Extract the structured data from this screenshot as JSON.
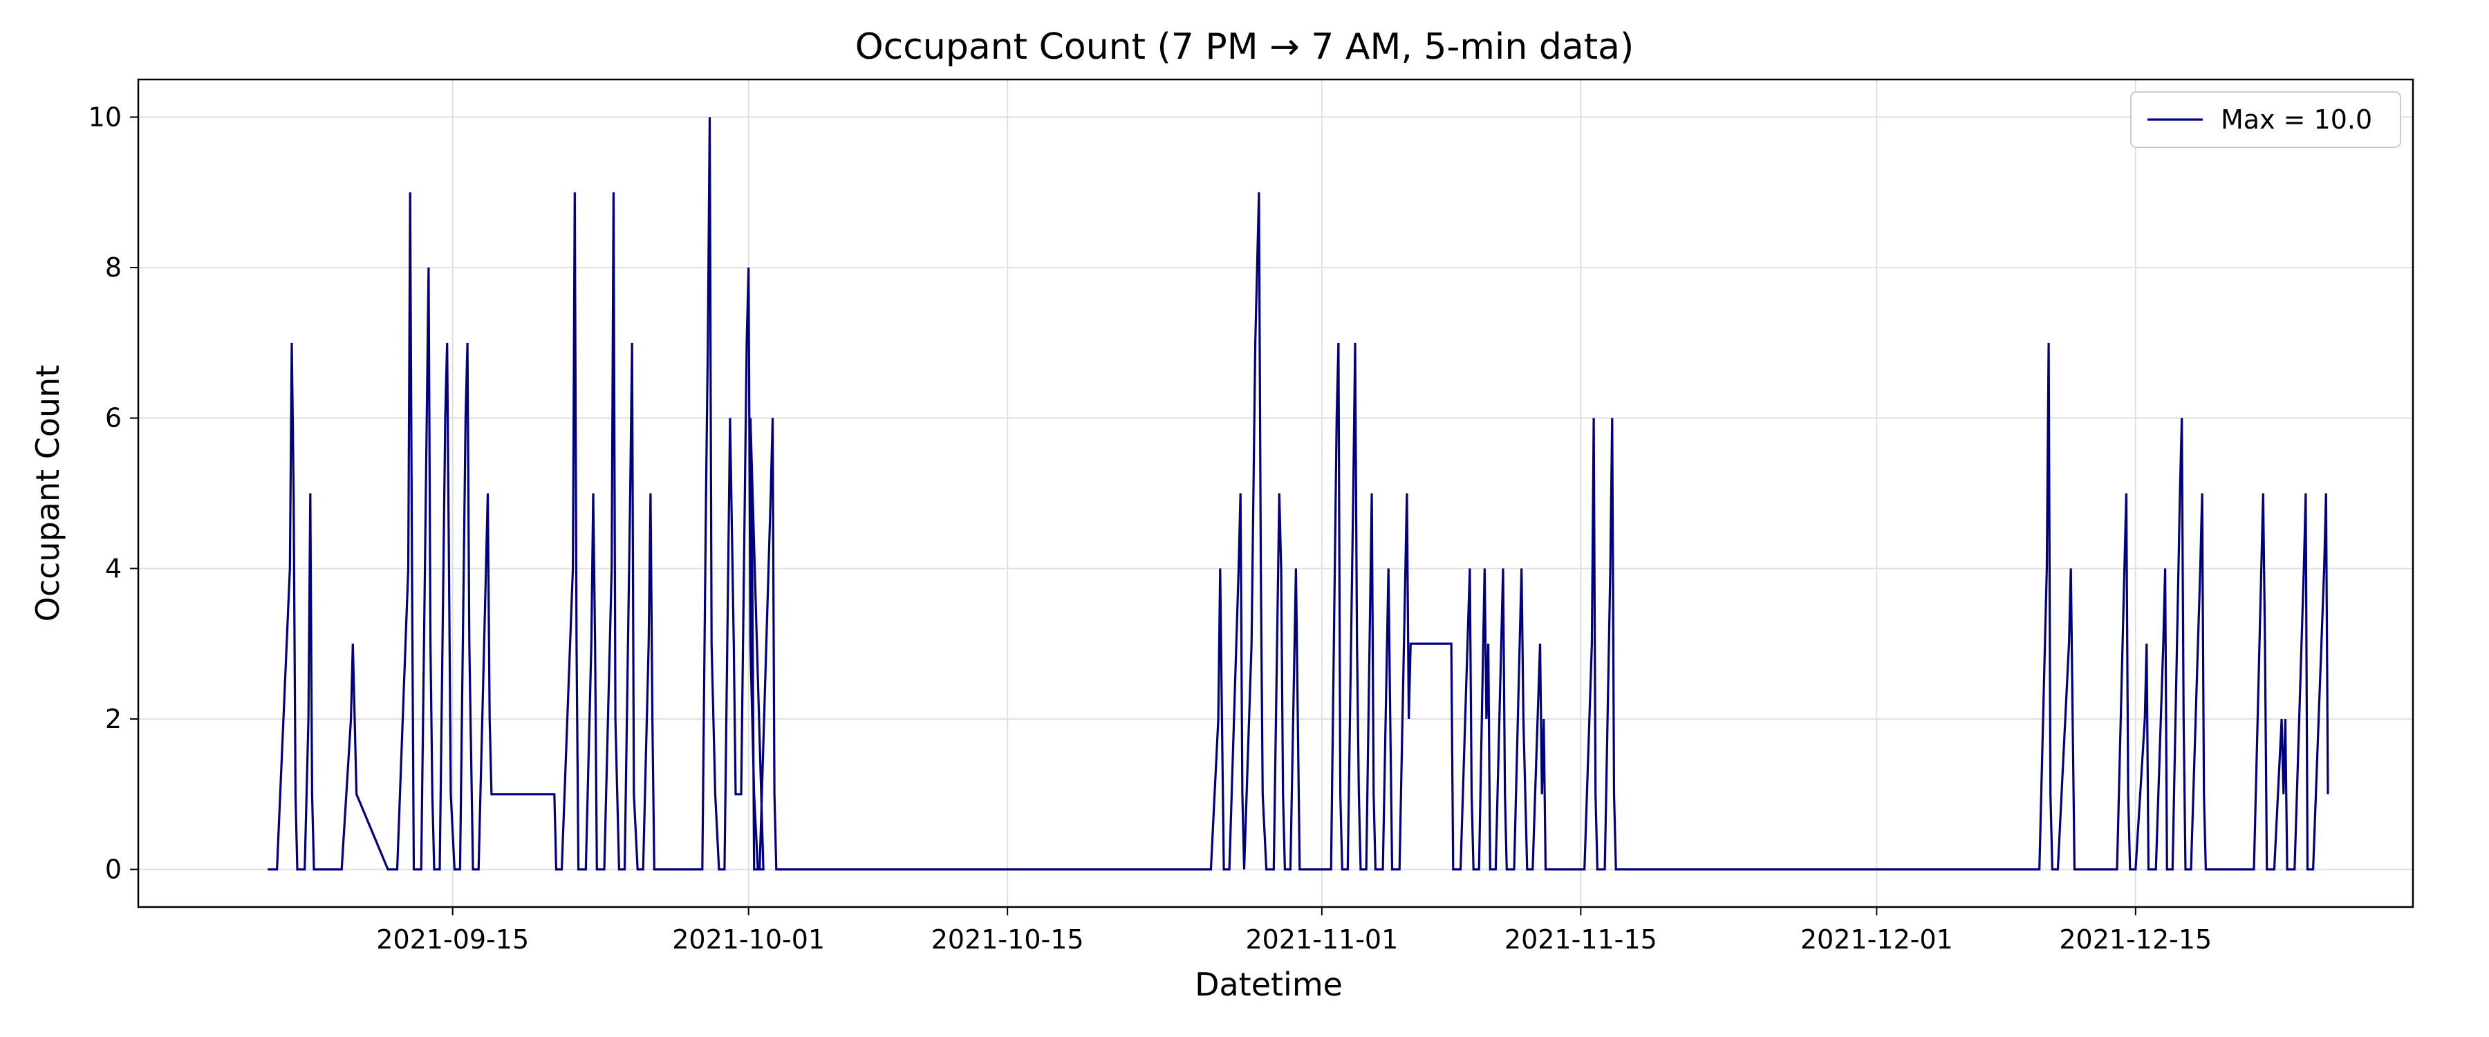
{
  "chart_data": {
    "type": "line",
    "title": "Occupant Count (7 PM → 7 AM, 5-min data)",
    "xlabel": "Datetime",
    "ylabel": "Occupant Count",
    "xlim": [
      "2021-08-29",
      "2021-12-30"
    ],
    "ylim": [
      -0.5,
      10.5
    ],
    "x_ticks": [
      "2021-09-15",
      "2021-10-01",
      "2021-10-15",
      "2021-11-01",
      "2021-11-15",
      "2021-12-01",
      "2021-12-15"
    ],
    "y_ticks": [
      0,
      2,
      4,
      6,
      8,
      10
    ],
    "grid": true,
    "legend_position": "top-right",
    "colors": {
      "line": "#000080",
      "grid": "#e0e0e0",
      "axes": "#000000"
    },
    "series": [
      {
        "name": "Max = 10.0",
        "points": [
          [
            "2021-09-05",
            0
          ],
          [
            "2021-09-05.5",
            0
          ],
          [
            "2021-09-06.2",
            4
          ],
          [
            "2021-09-06.3",
            7
          ],
          [
            "2021-09-06.4",
            5
          ],
          [
            "2021-09-06.5",
            1
          ],
          [
            "2021-09-06.6",
            0
          ],
          [
            "2021-09-07",
            0
          ],
          [
            "2021-09-07.2",
            2
          ],
          [
            "2021-09-07.3",
            5
          ],
          [
            "2021-09-07.4",
            1
          ],
          [
            "2021-09-07.5",
            0
          ],
          [
            "2021-09-09",
            0
          ],
          [
            "2021-09-09.5",
            2
          ],
          [
            "2021-09-09.6",
            3
          ],
          [
            "2021-09-09.7",
            2
          ],
          [
            "2021-09-09.8",
            1
          ],
          [
            "2021-09-11.5",
            0
          ],
          [
            "2021-09-12",
            0
          ],
          [
            "2021-09-12.6",
            4
          ],
          [
            "2021-09-12.7",
            9
          ],
          [
            "2021-09-12.8",
            4
          ],
          [
            "2021-09-12.9",
            0
          ],
          [
            "2021-09-13.3",
            0
          ],
          [
            "2021-09-13.5",
            4
          ],
          [
            "2021-09-13.7",
            8
          ],
          [
            "2021-09-13.8",
            3
          ],
          [
            "2021-09-13.9",
            1
          ],
          [
            "2021-09-14",
            0
          ],
          [
            "2021-09-14.3",
            0
          ],
          [
            "2021-09-14.6",
            6
          ],
          [
            "2021-09-14.7",
            7
          ],
          [
            "2021-09-14.8",
            4
          ],
          [
            "2021-09-14.9",
            1
          ],
          [
            "2021-09-15.1",
            0
          ],
          [
            "2021-09-15.4",
            0
          ],
          [
            "2021-09-15.7",
            6
          ],
          [
            "2021-09-15.8",
            7
          ],
          [
            "2021-09-15.9",
            3
          ],
          [
            "2021-09-16.1",
            0
          ],
          [
            "2021-09-16.4",
            0
          ],
          [
            "2021-09-16.8",
            4
          ],
          [
            "2021-09-16.9",
            5
          ],
          [
            "2021-09-17",
            2
          ],
          [
            "2021-09-17.1",
            1
          ],
          [
            "2021-09-20.5",
            1
          ],
          [
            "2021-09-20.6",
            0
          ],
          [
            "2021-09-20.9",
            0
          ],
          [
            "2021-09-21.5",
            4
          ],
          [
            "2021-09-21.6",
            9
          ],
          [
            "2021-09-21.7",
            3
          ],
          [
            "2021-09-21.8",
            0
          ],
          [
            "2021-09-22.2",
            0
          ],
          [
            "2021-09-22.5",
            3
          ],
          [
            "2021-09-22.6",
            5
          ],
          [
            "2021-09-22.7",
            3
          ],
          [
            "2021-09-22.8",
            0
          ],
          [
            "2021-09-23.2",
            0
          ],
          [
            "2021-09-23.6",
            4
          ],
          [
            "2021-09-23.7",
            9
          ],
          [
            "2021-09-23.8",
            2
          ],
          [
            "2021-09-24",
            0
          ],
          [
            "2021-09-24.3",
            0
          ],
          [
            "2021-09-24.6",
            5
          ],
          [
            "2021-09-24.7",
            7
          ],
          [
            "2021-09-24.8",
            1
          ],
          [
            "2021-09-25",
            0
          ],
          [
            "2021-09-25.3",
            0
          ],
          [
            "2021-09-25.6",
            3
          ],
          [
            "2021-09-25.7",
            5
          ],
          [
            "2021-09-25.8",
            2
          ],
          [
            "2021-09-25.9",
            0
          ],
          [
            "2021-09-28.5",
            0
          ],
          [
            "2021-09-28.7",
            5
          ],
          [
            "2021-09-28.8",
            7
          ],
          [
            "2021-09-28.9",
            10
          ],
          [
            "2021-09-29",
            3
          ],
          [
            "2021-09-29.2",
            1
          ],
          [
            "2021-09-29.4",
            0
          ],
          [
            "2021-09-29.7",
            0
          ],
          [
            "2021-09-30",
            6
          ],
          [
            "2021-09-30.2",
            3
          ],
          [
            "2021-09-30.3",
            1
          ],
          [
            "2021-09-30.6",
            1
          ],
          [
            "2021-09-30.9",
            7
          ],
          [
            "2021-09-31",
            8
          ],
          [
            "2021-09-31.1",
            3
          ],
          [
            "2021-09-31.3",
            1
          ],
          [
            "2021-09-31.5",
            0
          ],
          [
            "2021-09-31.8",
            0
          ],
          [
            "2021-10-01.1",
            6
          ],
          [
            "2021-10-01.2",
            4
          ],
          [
            "2021-10-01.3",
            0
          ],
          [
            "2021-10-01.6",
            0
          ],
          [
            "2021-10-02.2",
            5
          ],
          [
            "2021-10-02.3",
            6
          ],
          [
            "2021-10-02.4",
            1
          ],
          [
            "2021-10-02.5",
            0
          ],
          [
            "2021-10-26",
            0
          ],
          [
            "2021-10-26.4",
            2
          ],
          [
            "2021-10-26.5",
            4
          ],
          [
            "2021-10-26.6",
            2
          ],
          [
            "2021-10-26.7",
            0
          ],
          [
            "2021-10-27",
            0
          ],
          [
            "2021-10-27.5",
            4
          ],
          [
            "2021-10-27.6",
            5
          ],
          [
            "2021-10-27.7",
            1
          ],
          [
            "2021-10-27.8",
            0
          ],
          [
            "2021-10-28.2",
            3
          ],
          [
            "2021-10-28.4",
            7
          ],
          [
            "2021-10-28.6",
            9
          ],
          [
            "2021-10-28.7",
            4
          ],
          [
            "2021-10-28.8",
            1
          ],
          [
            "2021-10-29",
            0
          ],
          [
            "2021-10-29.4",
            0
          ],
          [
            "2021-10-29.7",
            5
          ],
          [
            "2021-10-29.8",
            4
          ],
          [
            "2021-10-29.9",
            1
          ],
          [
            "2021-10-30",
            0
          ],
          [
            "2021-10-30.3",
            0
          ],
          [
            "2021-10-30.6",
            4
          ],
          [
            "2021-10-30.7",
            2
          ],
          [
            "2021-10-30.8",
            0
          ],
          [
            "2021-11-01.5",
            0
          ],
          [
            "2021-11-01.8",
            6
          ],
          [
            "2021-11-01.9",
            7
          ],
          [
            "2021-11-02",
            1
          ],
          [
            "2021-11-02.1",
            0
          ],
          [
            "2021-11-02.4",
            0
          ],
          [
            "2021-11-02.7",
            5
          ],
          [
            "2021-11-02.8",
            7
          ],
          [
            "2021-11-02.9",
            3
          ],
          [
            "2021-11-03",
            1
          ],
          [
            "2021-11-03.1",
            0
          ],
          [
            "2021-11-03.4",
            0
          ],
          [
            "2021-11-03.7",
            5
          ],
          [
            "2021-11-03.8",
            1
          ],
          [
            "2021-11-03.9",
            0
          ],
          [
            "2021-11-04.3",
            0
          ],
          [
            "2021-11-04.6",
            4
          ],
          [
            "2021-11-04.7",
            2
          ],
          [
            "2021-11-04.8",
            0
          ],
          [
            "2021-11-05.2",
            0
          ],
          [
            "2021-11-05.6",
            5
          ],
          [
            "2021-11-05.7",
            2
          ],
          [
            "2021-11-05.8",
            3
          ],
          [
            "2021-11-08",
            3
          ],
          [
            "2021-11-08.1",
            0
          ],
          [
            "2021-11-08.5",
            0
          ],
          [
            "2021-11-09",
            4
          ],
          [
            "2021-11-09.1",
            1
          ],
          [
            "2021-11-09.2",
            0
          ],
          [
            "2021-11-09.5",
            0
          ],
          [
            "2021-11-09.8",
            4
          ],
          [
            "2021-11-09.9",
            2
          ],
          [
            "2021-11-10",
            3
          ],
          [
            "2021-11-10.1",
            0
          ],
          [
            "2021-11-10.4",
            0
          ],
          [
            "2021-11-10.8",
            4
          ],
          [
            "2021-11-10.9",
            1
          ],
          [
            "2021-11-11",
            0
          ],
          [
            "2021-11-11.4",
            0
          ],
          [
            "2021-11-11.8",
            4
          ],
          [
            "2021-11-11.9",
            2
          ],
          [
            "2021-11-12",
            1
          ],
          [
            "2021-11-12.1",
            0
          ],
          [
            "2021-11-12.4",
            0
          ],
          [
            "2021-11-12.8",
            3
          ],
          [
            "2021-11-12.9",
            1
          ],
          [
            "2021-11-13",
            2
          ],
          [
            "2021-11-13.1",
            0
          ],
          [
            "2021-11-15.2",
            0
          ],
          [
            "2021-11-15.6",
            3
          ],
          [
            "2021-11-15.7",
            6
          ],
          [
            "2021-11-15.8",
            1
          ],
          [
            "2021-11-15.9",
            0
          ],
          [
            "2021-11-16.3",
            0
          ],
          [
            "2021-11-16.6",
            4
          ],
          [
            "2021-11-16.7",
            6
          ],
          [
            "2021-11-16.8",
            1
          ],
          [
            "2021-11-16.9",
            0
          ],
          [
            "2021-12-09.8",
            0
          ],
          [
            "2021-12-10.2",
            4
          ],
          [
            "2021-12-10.3",
            7
          ],
          [
            "2021-12-10.4",
            1
          ],
          [
            "2021-12-10.5",
            0
          ],
          [
            "2021-12-10.8",
            0
          ],
          [
            "2021-12-11.4",
            3
          ],
          [
            "2021-12-11.5",
            4
          ],
          [
            "2021-12-11.6",
            2
          ],
          [
            "2021-12-11.7",
            0
          ],
          [
            "2021-12-14",
            0
          ],
          [
            "2021-12-14.4",
            4
          ],
          [
            "2021-12-14.5",
            5
          ],
          [
            "2021-12-14.6",
            1
          ],
          [
            "2021-12-14.7",
            0
          ],
          [
            "2021-12-15",
            0
          ],
          [
            "2021-12-15.5",
            2
          ],
          [
            "2021-12-15.6",
            3
          ],
          [
            "2021-12-15.7",
            0
          ],
          [
            "2021-12-16.1",
            0
          ],
          [
            "2021-12-16.5",
            3
          ],
          [
            "2021-12-16.6",
            4
          ],
          [
            "2021-12-16.7",
            0
          ],
          [
            "2021-12-17",
            0
          ],
          [
            "2021-12-17.4",
            5
          ],
          [
            "2021-12-17.5",
            6
          ],
          [
            "2021-12-17.6",
            2
          ],
          [
            "2021-12-17.7",
            0
          ],
          [
            "2021-12-18",
            0
          ],
          [
            "2021-12-18.5",
            4
          ],
          [
            "2021-12-18.6",
            5
          ],
          [
            "2021-12-18.7",
            1
          ],
          [
            "2021-12-18.8",
            0
          ],
          [
            "2021-12-21.4",
            0
          ],
          [
            "2021-12-21.8",
            4
          ],
          [
            "2021-12-21.9",
            5
          ],
          [
            "2021-12-22",
            3
          ],
          [
            "2021-12-22.1",
            0
          ],
          [
            "2021-12-22.5",
            0
          ],
          [
            "2021-12-22.9",
            2
          ],
          [
            "2021-12-23",
            1
          ],
          [
            "2021-12-23.1",
            2
          ],
          [
            "2021-12-23.2",
            0
          ],
          [
            "2021-12-23.6",
            0
          ],
          [
            "2021-12-24.1",
            4
          ],
          [
            "2021-12-24.2",
            5
          ],
          [
            "2021-12-24.3",
            0
          ],
          [
            "2021-12-24.6",
            0
          ],
          [
            "2021-12-25.2",
            4
          ],
          [
            "2021-12-25.3",
            5
          ],
          [
            "2021-12-25.4",
            1
          ]
        ]
      }
    ]
  }
}
